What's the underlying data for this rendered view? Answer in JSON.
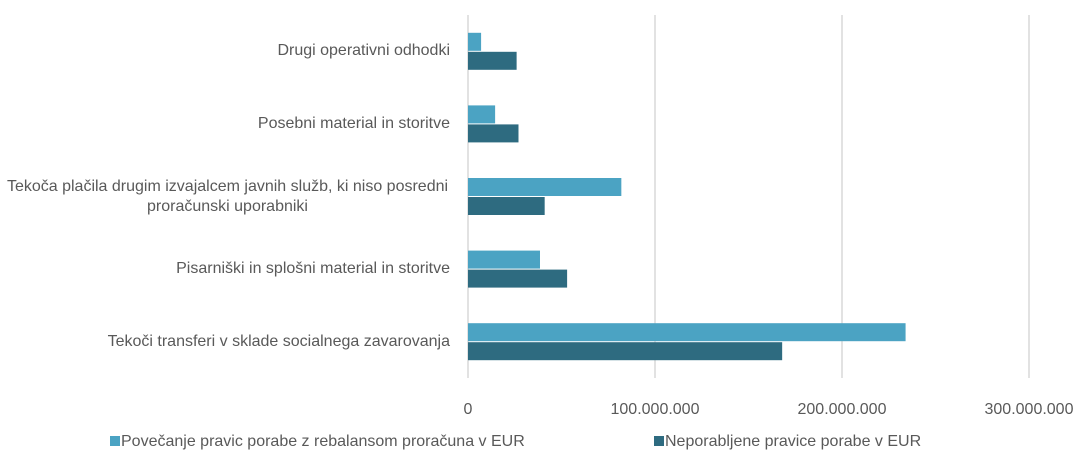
{
  "chart_data": {
    "type": "barh",
    "categories": [
      "Drugi operativni odhodki",
      "Posebni material in storitve",
      "Tekoča plačila drugim izvajalcem javnih služb, ki niso posredni proračunski uporabniki",
      "Pisarniški in splošni material in storitve",
      "Tekoči transferi v sklade socialnega zavarovanja"
    ],
    "series": [
      {
        "name": "Povečanje pravic porabe z rebalansom proračuna v EUR",
        "color": "#4ba3c3",
        "values": [
          7000000,
          14500000,
          82000000,
          38500000,
          234000000
        ]
      },
      {
        "name": "Neporabljene pravice porabe v EUR",
        "color": "#2e6b80",
        "values": [
          26000000,
          27000000,
          41000000,
          53000000,
          168000000
        ]
      }
    ],
    "xlim": [
      0,
      300000000
    ],
    "xticks": [
      0,
      {
        "value": 100000000,
        "label": "100.000.000"
      },
      {
        "value": 200000000,
        "label": "200.000.000"
      },
      {
        "value": 300000000,
        "label": "300.000.000"
      }
    ],
    "grid": true
  }
}
